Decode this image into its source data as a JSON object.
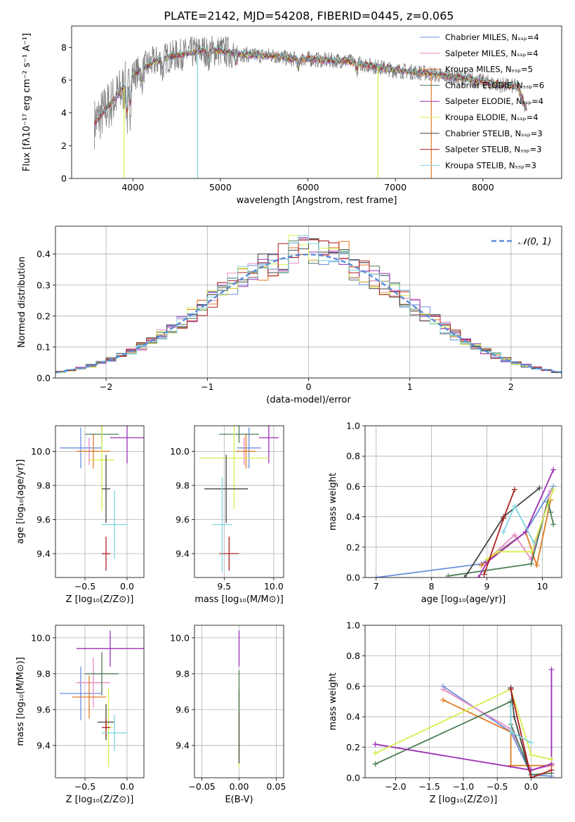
{
  "chart_data": [
    {
      "type": "line",
      "title": "PLATE=2142, MJD=54208, FIBERID=0445, z=0.065",
      "xlabel": "wavelength [Angstrom, rest frame]",
      "ylabel": "Flux [fλ10⁻¹⁷ erg cm⁻² s⁻¹ A⁻¹]",
      "xlim": [
        3300,
        8900
      ],
      "ylim": [
        0,
        9.3
      ],
      "xticks": [
        4000,
        5000,
        6000,
        7000,
        8000
      ],
      "yticks": [
        0,
        2,
        4,
        6,
        8
      ],
      "legend_position": "top-right",
      "legend": [
        {
          "label": "Chabrier MILES, Nₛₛₚ=4",
          "color": "#6a8fdc"
        },
        {
          "label": "Salpeter MILES, Nₛₛₚ=4",
          "color": "#e58ac3"
        },
        {
          "label": "Kroupa MILES, Nₛₛₚ=5",
          "color": "#e07b22"
        },
        {
          "label": "Chabrier ELODIE, Nₛₛₚ=6",
          "color": "#4c7d57"
        },
        {
          "label": "Salpeter ELODIE, Nₛₛₚ=4",
          "color": "#9b2fb5"
        },
        {
          "label": "Kroupa ELODIE, Nₛₛₚ=4",
          "color": "#d7ee4e"
        },
        {
          "label": "Chabrier STELIB, Nₛₛₚ=3",
          "color": "#444444"
        },
        {
          "label": "Salpeter STELIB, Nₛₛₚ=3",
          "color": "#b01f1f"
        },
        {
          "label": "Kroupa STELIB, Nₛₛₚ=3",
          "color": "#7fd6e0"
        }
      ],
      "spectrum_continuum": {
        "x": [
          3550,
          3700,
          3850,
          4000,
          4200,
          4400,
          4600,
          4800,
          5000,
          5200,
          5400,
          5600,
          5800,
          6000,
          6200,
          6400,
          6600,
          6800,
          7000,
          7200,
          7400,
          7600,
          7800,
          8000,
          8200,
          8400,
          8500
        ],
        "y": [
          3.3,
          4.3,
          5.2,
          6.3,
          7.0,
          7.4,
          7.6,
          7.8,
          7.8,
          7.6,
          7.5,
          7.5,
          7.3,
          7.3,
          7.2,
          7.2,
          7.0,
          6.8,
          6.6,
          6.5,
          6.4,
          6.2,
          6.1,
          5.9,
          5.7,
          5.6,
          4.2
        ]
      }
    },
    {
      "type": "line",
      "xlabel": "(data-model)/error",
      "ylabel": "Normed distribution",
      "xlim": [
        -2.5,
        2.5
      ],
      "ylim": [
        0,
        0.49
      ],
      "xticks": [
        -2,
        -1,
        0,
        1,
        2
      ],
      "yticks": [
        0.0,
        0.1,
        0.2,
        0.3,
        0.4
      ],
      "legend_position": "top-right",
      "legend": [
        {
          "label": "𝒩(0, 1)",
          "color": "#6a8fdc"
        }
      ],
      "reference_curve": "standard normal N(0,1)",
      "histogram_bin_width": 0.1
    },
    {
      "type": "scatter",
      "xlabel": "Z [log₁₀(Z/Z⊙)]",
      "ylabel": "age  [log₁₀(age/yr)]",
      "xlim": [
        -0.85,
        0.2
      ],
      "ylim": [
        9.26,
        10.15
      ],
      "xticks": [
        -0.5,
        0.0
      ],
      "yticks": [
        9.4,
        9.6,
        9.8,
        10.0
      ],
      "points": [
        {
          "model": "Chabrier MILES",
          "x": -0.55,
          "y": 10.02,
          "xerr": 0.25,
          "yerr": 0.12
        },
        {
          "model": "Salpeter MILES",
          "x": -0.45,
          "y": 10.0,
          "xerr": 0.15,
          "yerr": 0.08
        },
        {
          "model": "Kroupa MILES",
          "x": -0.4,
          "y": 10.0,
          "xerr": 0.2,
          "yerr": 0.1
        },
        {
          "model": "Chabrier ELODIE",
          "x": -0.3,
          "y": 10.1,
          "xerr": 0.2,
          "yerr": 0.05
        },
        {
          "model": "Salpeter ELODIE",
          "x": 0.0,
          "y": 10.08,
          "xerr": 0.2,
          "yerr": 0.15
        },
        {
          "model": "Kroupa ELODIE",
          "x": -0.3,
          "y": 9.95,
          "xerr": 0.15,
          "yerr": 0.3
        },
        {
          "model": "Chabrier STELIB",
          "x": -0.25,
          "y": 9.78,
          "xerr": 0.05,
          "yerr": 0.2
        },
        {
          "model": "Salpeter STELIB",
          "x": -0.25,
          "y": 9.4,
          "xerr": 0.05,
          "yerr": 0.1
        },
        {
          "model": "Kroupa STELIB",
          "x": -0.15,
          "y": 9.57,
          "xerr": 0.15,
          "yerr": 0.2
        }
      ]
    },
    {
      "type": "scatter",
      "xlabel": "mass [log₁₀(M/M⊙)]",
      "xlim": [
        9.2,
        10.1
      ],
      "ylim": [
        9.26,
        10.15
      ],
      "xticks": [
        9.5,
        10.0
      ],
      "yticks": [
        9.4,
        9.6,
        9.8,
        10.0
      ],
      "points": [
        {
          "model": "Chabrier MILES",
          "x": 9.75,
          "y": 10.02,
          "xerr": 0.12,
          "yerr": 0.12
        },
        {
          "model": "Salpeter MILES",
          "x": 9.7,
          "y": 10.0,
          "xerr": 0.08,
          "yerr": 0.08
        },
        {
          "model": "Kroupa MILES",
          "x": 9.72,
          "y": 10.0,
          "xerr": 0.1,
          "yerr": 0.1
        },
        {
          "model": "Chabrier ELODIE",
          "x": 9.65,
          "y": 10.1,
          "xerr": 0.2,
          "yerr": 0.05
        },
        {
          "model": "Salpeter ELODIE",
          "x": 9.95,
          "y": 10.08,
          "xerr": 0.1,
          "yerr": 0.15
        },
        {
          "model": "Kroupa ELODIE",
          "x": 9.6,
          "y": 9.96,
          "xerr": 0.35,
          "yerr": 0.3
        },
        {
          "model": "Chabrier STELIB",
          "x": 9.52,
          "y": 9.78,
          "xerr": 0.22,
          "yerr": 0.2
        },
        {
          "model": "Salpeter STELIB",
          "x": 9.55,
          "y": 9.4,
          "xerr": 0.1,
          "yerr": 0.1
        },
        {
          "model": "Kroupa STELIB",
          "x": 9.48,
          "y": 9.57,
          "xerr": 0.1,
          "yerr": 0.28
        }
      ]
    },
    {
      "type": "line",
      "xlabel": "age  [log₁₀(age/yr)]",
      "ylabel": "mass weight",
      "xlim": [
        6.8,
        10.35
      ],
      "ylim": [
        0,
        1.0
      ],
      "xticks": [
        7,
        8,
        9,
        10
      ],
      "yticks": [
        0.0,
        0.2,
        0.4,
        0.6,
        0.8,
        1.0
      ],
      "series": [
        {
          "model": "Chabrier MILES",
          "x": [
            7.0,
            8.9,
            9.7,
            10.2
          ],
          "y": [
            0.0,
            0.09,
            0.3,
            0.6
          ]
        },
        {
          "model": "Salpeter MILES",
          "x": [
            8.9,
            9.5,
            9.8,
            10.15
          ],
          "y": [
            0.08,
            0.28,
            0.12,
            0.57
          ]
        },
        {
          "model": "Kroupa MILES",
          "x": [
            8.9,
            9.7,
            9.9,
            10.15
          ],
          "y": [
            0.08,
            0.3,
            0.08,
            0.51
          ]
        },
        {
          "model": "Chabrier ELODIE",
          "x": [
            8.3,
            9.8,
            10.1,
            10.15,
            10.2
          ],
          "y": [
            0.01,
            0.09,
            0.5,
            0.43,
            0.35
          ]
        },
        {
          "model": "Salpeter ELODIE",
          "x": [
            8.85,
            9.0,
            9.7,
            10.2
          ],
          "y": [
            0.0,
            0.1,
            0.3,
            0.71
          ]
        },
        {
          "model": "Kroupa ELODIE",
          "x": [
            9.0,
            9.2,
            9.8,
            10.2
          ],
          "y": [
            0.12,
            0.17,
            0.17,
            0.58
          ]
        },
        {
          "model": "Chabrier STELIB",
          "x": [
            8.6,
            9.3,
            9.95
          ],
          "y": [
            0.0,
            0.4,
            0.59
          ]
        },
        {
          "model": "Salpeter STELIB",
          "x": [
            8.95,
            9.3,
            9.5
          ],
          "y": [
            0.02,
            0.39,
            0.58
          ]
        },
        {
          "model": "Kroupa STELIB",
          "x": [
            9.3,
            9.5,
            9.85
          ],
          "y": [
            0.3,
            0.47,
            0.23
          ]
        }
      ]
    },
    {
      "type": "scatter",
      "xlabel": "Z [log₁₀(Z/Z⊙)]",
      "ylabel": "mass [log₁₀(M/M⊙)]",
      "xlim": [
        -0.85,
        0.2
      ],
      "ylim": [
        9.22,
        10.07
      ],
      "xticks": [
        -0.5,
        0.0
      ],
      "yticks": [
        9.4,
        9.6,
        9.8,
        10.0
      ],
      "points": [
        {
          "model": "Chabrier MILES",
          "x": -0.55,
          "y": 9.69,
          "xerr": 0.25,
          "yerr": 0.15
        },
        {
          "model": "Salpeter MILES",
          "x": -0.4,
          "y": 9.75,
          "xerr": 0.2,
          "yerr": 0.14
        },
        {
          "model": "Kroupa MILES",
          "x": -0.45,
          "y": 9.67,
          "xerr": 0.2,
          "yerr": 0.12
        },
        {
          "model": "Chabrier ELODIE",
          "x": -0.3,
          "y": 9.8,
          "xerr": 0.2,
          "yerr": 0.12
        },
        {
          "model": "Salpeter ELODIE",
          "x": -0.2,
          "y": 9.94,
          "xerr": 0.4,
          "yerr": 0.1
        },
        {
          "model": "Kroupa ELODIE",
          "x": -0.22,
          "y": 9.5,
          "xerr": 0.05,
          "yerr": 0.22
        },
        {
          "model": "Chabrier STELIB",
          "x": -0.25,
          "y": 9.53,
          "xerr": 0.1,
          "yerr": 0.1
        },
        {
          "model": "Salpeter STELIB",
          "x": -0.25,
          "y": 9.5,
          "xerr": 0.05,
          "yerr": 0.05
        },
        {
          "model": "Kroupa STELIB",
          "x": -0.15,
          "y": 9.47,
          "xerr": 0.15,
          "yerr": 0.1
        }
      ]
    },
    {
      "type": "scatter",
      "xlabel": "E(B-V)",
      "xlim": [
        -0.06,
        0.06
      ],
      "ylim": [
        9.22,
        10.07
      ],
      "xticks": [
        -0.05,
        0.0,
        0.05
      ],
      "yticks": [
        9.4,
        9.6,
        9.8,
        10.0
      ],
      "points": [
        {
          "model": "Salpeter ELODIE",
          "x": 0.0,
          "y": 9.94,
          "yerr": 0.1
        },
        {
          "model": "Kroupa ELODIE",
          "x": 0.0,
          "y": 9.5,
          "yerr": 0.22
        },
        {
          "model": "Salpeter STELIB",
          "x": 0.0,
          "y": 9.66,
          "yerr": 0.05
        },
        {
          "model": "Chabrier STELIB",
          "x": 0.0,
          "y": 9.45,
          "yerr": 0.15
        },
        {
          "model": "Chabrier ELODIE",
          "x": 0.0,
          "y": 9.7,
          "yerr": 0.12
        }
      ]
    },
    {
      "type": "line",
      "xlabel": "Z [log₁₀(Z/Z⊙)]",
      "ylabel": "mass weight",
      "xlim": [
        -2.45,
        0.45
      ],
      "ylim": [
        0,
        1.0
      ],
      "xticks": [
        -2.0,
        -1.5,
        -1.0,
        -0.5,
        0.0
      ],
      "yticks": [
        0.0,
        0.2,
        0.4,
        0.6,
        0.8,
        1.0
      ],
      "series": [
        {
          "model": "Chabrier MILES",
          "x": [
            -1.3,
            -0.3,
            0.0,
            0.3
          ],
          "y": [
            0.6,
            0.3,
            0.02,
            0.01
          ]
        },
        {
          "model": "Salpeter MILES",
          "x": [
            -1.3,
            -0.3,
            0.0,
            0.3
          ],
          "y": [
            0.58,
            0.32,
            0.05,
            0.08
          ]
        },
        {
          "model": "Kroupa MILES",
          "x": [
            -1.3,
            -0.3,
            -0.3,
            0.3
          ],
          "y": [
            0.51,
            0.3,
            0.08,
            0.08
          ]
        },
        {
          "model": "Chabrier ELODIE",
          "x": [
            -2.3,
            -0.3,
            -0.3,
            0.0,
            0.3
          ],
          "y": [
            0.09,
            0.5,
            0.35,
            0.02,
            0.03
          ]
        },
        {
          "model": "Salpeter ELODIE",
          "x": [
            -2.3,
            0.0,
            0.3,
            0.3
          ],
          "y": [
            0.22,
            0.05,
            0.09,
            0.71
          ]
        },
        {
          "model": "Kroupa ELODIE",
          "x": [
            -2.3,
            -0.3,
            0.0,
            0.3
          ],
          "y": [
            0.16,
            0.58,
            0.15,
            0.12
          ]
        },
        {
          "model": "Chabrier STELIB",
          "x": [
            -0.3,
            -0.25,
            0.0
          ],
          "y": [
            0.59,
            0.4,
            0.0
          ]
        },
        {
          "model": "Salpeter STELIB",
          "x": [
            -0.3,
            0.0,
            0.3
          ],
          "y": [
            0.58,
            0.0,
            0.05
          ]
        },
        {
          "model": "Kroupa STELIB",
          "x": [
            -0.3,
            -0.3,
            0.0
          ],
          "y": [
            0.47,
            0.3,
            0.23
          ]
        }
      ]
    }
  ]
}
